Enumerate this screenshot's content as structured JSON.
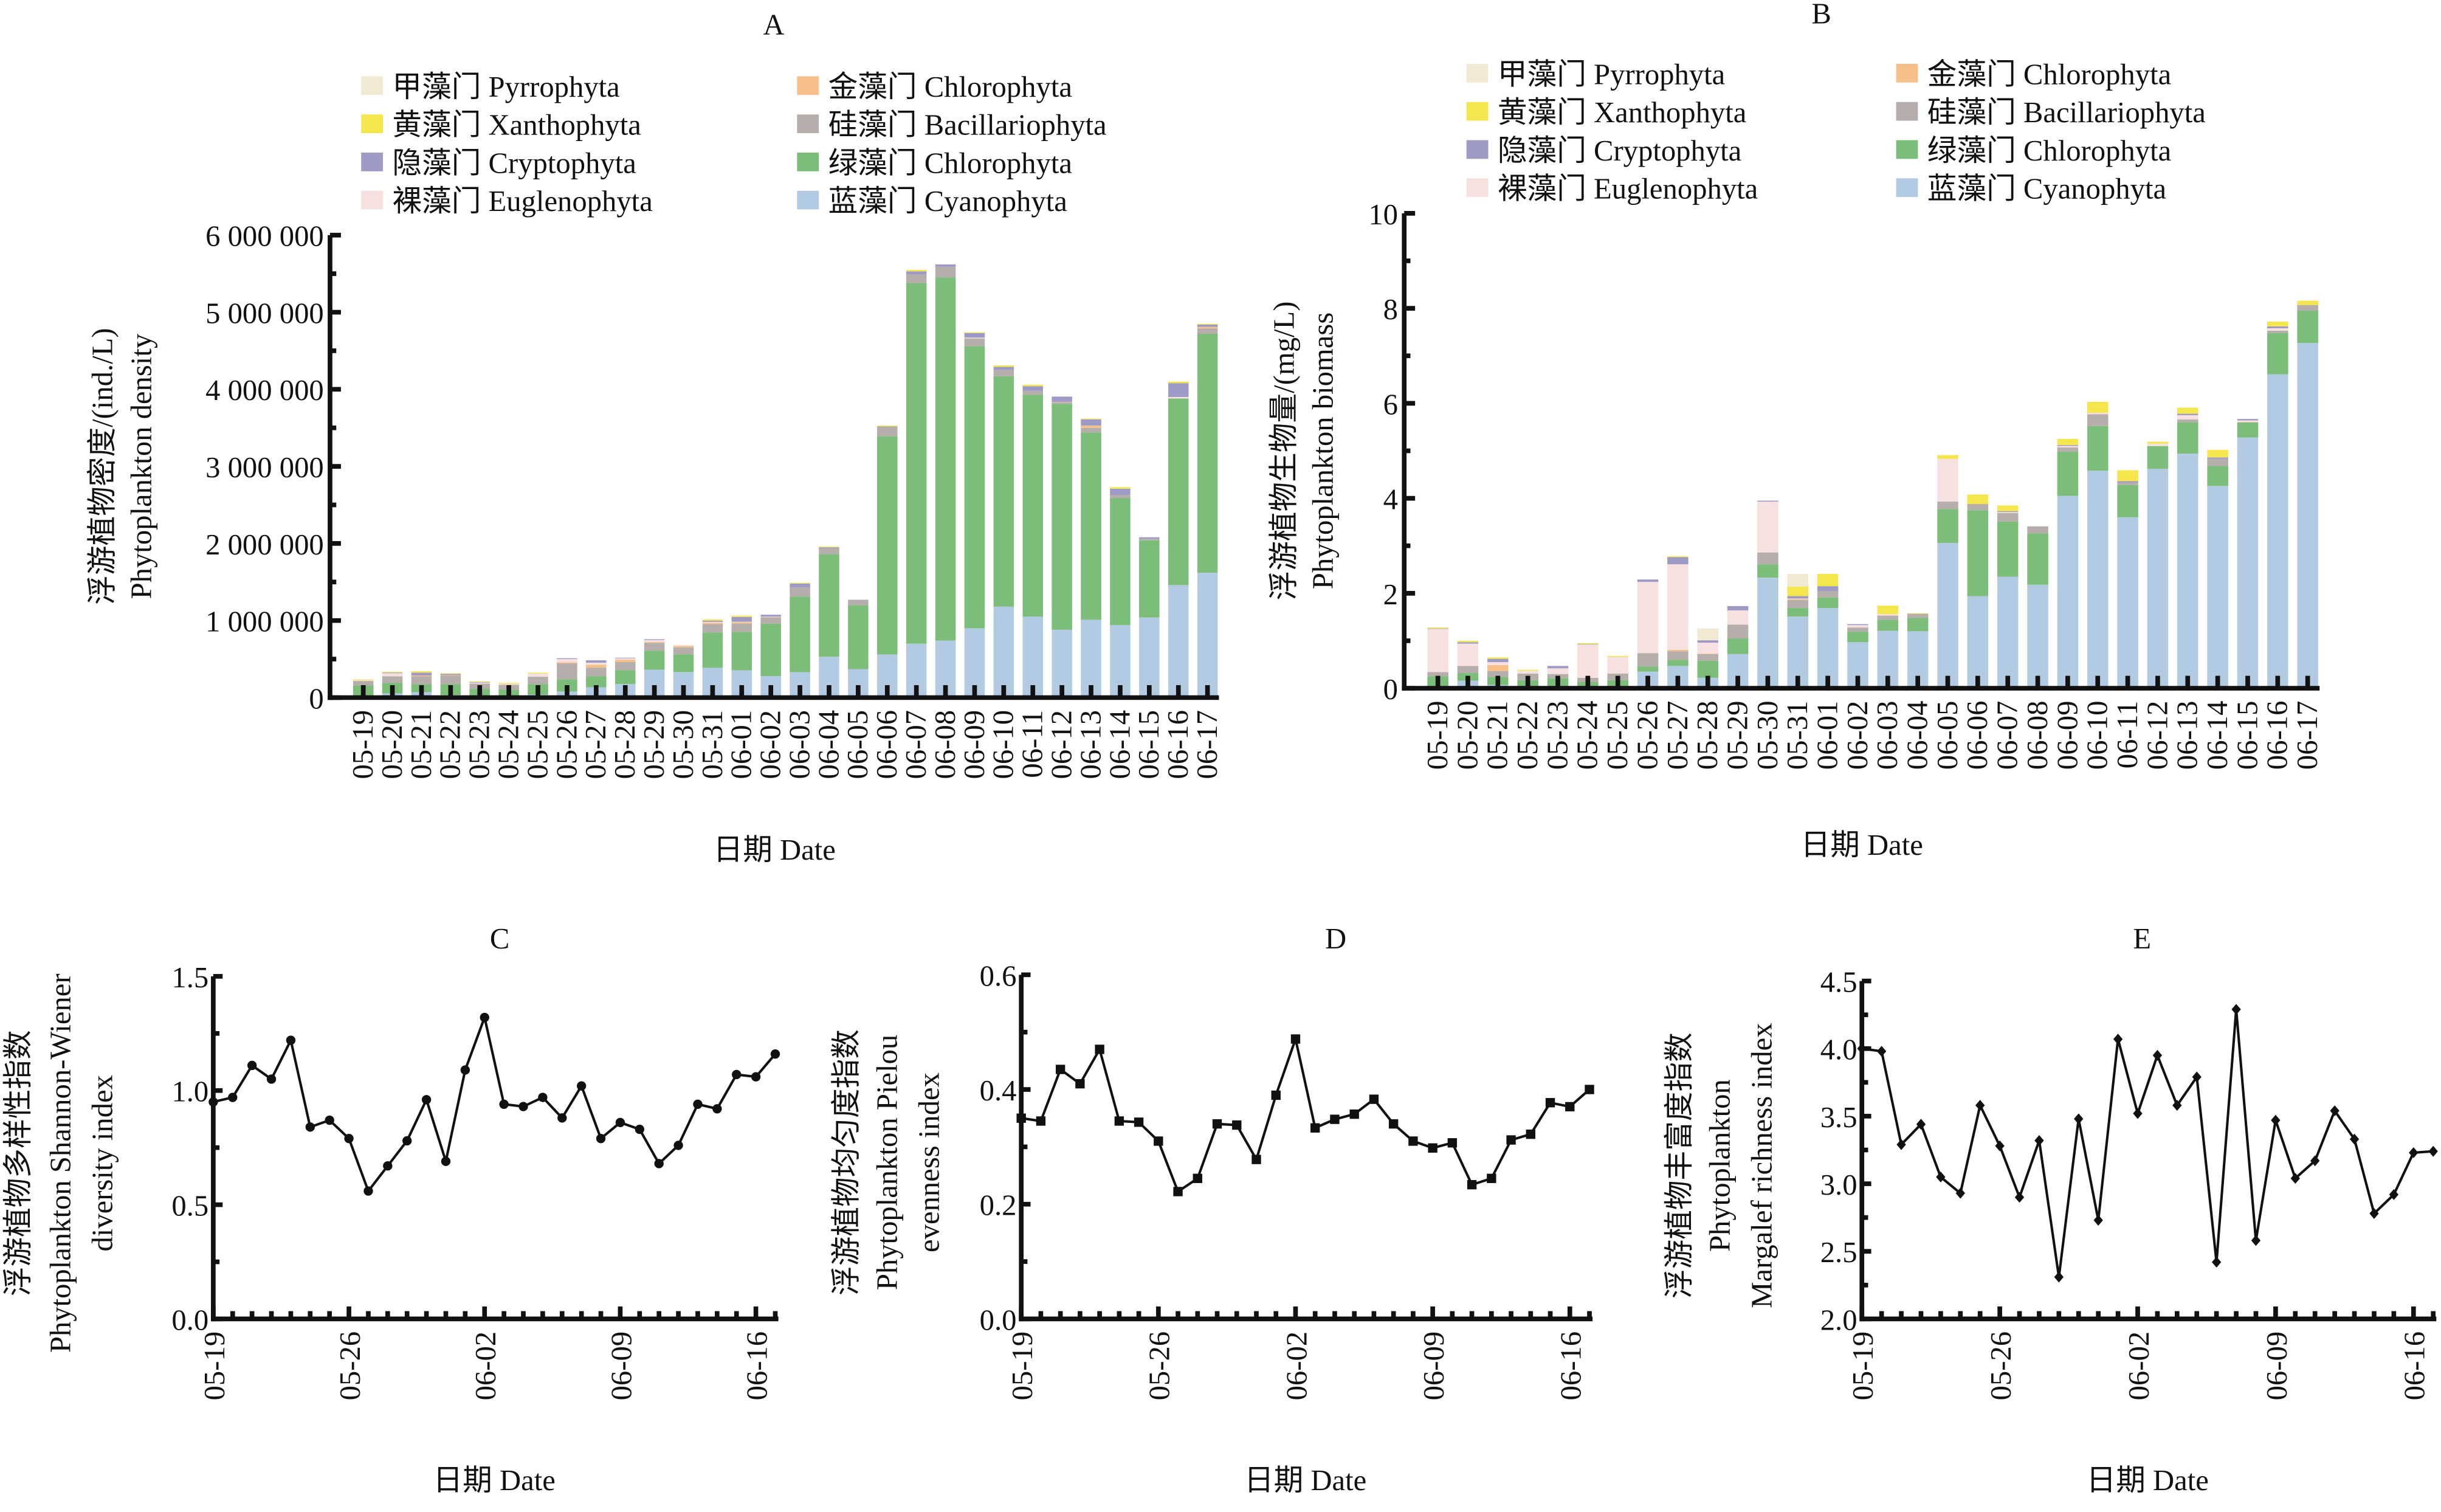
{
  "figure": {
    "categories_note": "dates are month-day",
    "dates": [
      "05-19",
      "05-20",
      "05-21",
      "05-22",
      "05-23",
      "05-24",
      "05-25",
      "05-26",
      "05-27",
      "05-28",
      "05-29",
      "05-30",
      "05-31",
      "06-01",
      "06-02",
      "06-03",
      "06-04",
      "06-05",
      "06-06",
      "06-07",
      "06-08",
      "06-09",
      "06-10",
      "06-11",
      "06-12",
      "06-13",
      "06-14",
      "06-15",
      "06-16",
      "06-17"
    ]
  },
  "legend": [
    {
      "key": "pyrrophyta",
      "label": "甲藻门 Pyrrophyta",
      "color": "#F1E9D2"
    },
    {
      "key": "xanthophyta",
      "label": "黄藻门 Xanthophyta",
      "color": "#F5E64E"
    },
    {
      "key": "cryptophyta",
      "label": "隐藻门 Cryptophyta",
      "color": "#9D9BC6"
    },
    {
      "key": "euglenophyta",
      "label": "裸藻门 Euglenophyta",
      "color": "#F7E1E0"
    },
    {
      "key": "chrysophyta",
      "label": "金藻门 Chlorophyta",
      "color": "#F6C08A"
    },
    {
      "key": "bacillariophyta",
      "label": "硅藻门 Bacillariophyta",
      "color": "#B6AEAB"
    },
    {
      "key": "chlorophyta",
      "label": "绿藻门 Chlorophyta",
      "color": "#7CBD7A"
    },
    {
      "key": "cyanophyta",
      "label": "蓝藻门 Cyanophyta",
      "color": "#B3CBE2"
    }
  ],
  "chart_data": [
    {
      "id": "A",
      "type": "bar",
      "stacked": true,
      "title": "A",
      "xlabel": "日期 Date",
      "ylabel_cn": "浮游植物密度/(ind./L)",
      "ylabel_en": "Phytoplankton density",
      "ylim": [
        0,
        6000000
      ],
      "yticks": [
        0,
        1000000,
        2000000,
        3000000,
        4000000,
        5000000,
        6000000
      ],
      "ytick_labels": [
        "0",
        "1 000 000",
        "2 000 000",
        "3 000 000",
        "4 000 000",
        "5 000 000",
        "6 000 000"
      ],
      "legend_position": "top",
      "categories": [
        "05-19",
        "05-20",
        "05-21",
        "05-22",
        "05-23",
        "05-24",
        "05-25",
        "05-26",
        "05-27",
        "05-28",
        "05-29",
        "05-30",
        "05-31",
        "06-01",
        "06-02",
        "06-03",
        "06-04",
        "06-05",
        "06-06",
        "06-07",
        "06-08",
        "06-09",
        "06-10",
        "06-11",
        "06-12",
        "06-13",
        "06-14",
        "06-15",
        "06-16",
        "06-17"
      ],
      "series": [
        {
          "name": "蓝藻门 Cyanophyta",
          "key": "cyanophyta",
          "values": [
            5000,
            55000,
            71000,
            34000,
            5000,
            5000,
            39000,
            79000,
            134000,
            176000,
            363000,
            332000,
            387000,
            355000,
            280000,
            330000,
            530000,
            370000,
            560000,
            700000,
            740000,
            900000,
            1180000,
            1050000,
            880000,
            1010000,
            940000,
            1040000,
            1460000,
            1620000
          ]
        },
        {
          "name": "绿藻门 Chlorophyta",
          "key": "chlorophyta",
          "values": [
            153000,
            137000,
            105000,
            142000,
            108000,
            98000,
            137000,
            158000,
            142000,
            179000,
            245000,
            229000,
            458000,
            498000,
            680000,
            980000,
            1330000,
            830000,
            2830000,
            4680000,
            4710000,
            3660000,
            2990000,
            2880000,
            2930000,
            2430000,
            1650000,
            1000000,
            2420000,
            3100000
          ]
        },
        {
          "name": "硅藻门 Bacillariophyta",
          "key": "bacillariophyta",
          "values": [
            58000,
            84000,
            100000,
            108000,
            69000,
            63000,
            95000,
            208000,
            113000,
            106000,
            103000,
            92000,
            110000,
            108000,
            80000,
            120000,
            80000,
            70000,
            130000,
            110000,
            140000,
            100000,
            80000,
            50000,
            20000,
            60000,
            40000,
            20000,
            0,
            70000
          ]
        },
        {
          "name": "金藻门 Chlorophyta",
          "key": "chrysophyta",
          "values": [
            0,
            0,
            11000,
            8000,
            0,
            0,
            0,
            13000,
            37000,
            31000,
            10000,
            18000,
            16000,
            18000,
            5000,
            0,
            0,
            0,
            0,
            0,
            0,
            0,
            0,
            0,
            5000,
            30000,
            0,
            0,
            0,
            20000
          ]
        },
        {
          "name": "裸藻门 Euglenophyta",
          "key": "euglenophyta",
          "values": [
            10000,
            40000,
            0,
            0,
            13000,
            13000,
            42000,
            42000,
            27000,
            19000,
            26000,
            13000,
            11000,
            5000,
            5000,
            0,
            0,
            0,
            0,
            0,
            0,
            10000,
            0,
            0,
            0,
            0,
            0,
            0,
            20000,
            0
          ]
        },
        {
          "name": "隐藻门 Cryptophyta",
          "key": "cryptophyta",
          "values": [
            0,
            8000,
            37000,
            16000,
            8000,
            0,
            0,
            11000,
            31000,
            7000,
            11000,
            0,
            15000,
            63000,
            25000,
            50000,
            10000,
            0,
            0,
            40000,
            30000,
            60000,
            40000,
            60000,
            70000,
            80000,
            80000,
            20000,
            180000,
            30000
          ]
        },
        {
          "name": "黄藻门 Xanthophyta",
          "key": "xanthophyta",
          "values": [
            8000,
            10000,
            18000,
            8000,
            8000,
            11000,
            11000,
            0,
            0,
            0,
            0,
            0,
            16000,
            16000,
            0,
            10000,
            10000,
            0,
            10000,
            20000,
            0,
            10000,
            20000,
            20000,
            0,
            10000,
            20000,
            0,
            20000,
            10000
          ]
        },
        {
          "name": "甲藻门 Pyrrophyta",
          "key": "pyrrophyta",
          "values": [
            6000,
            0,
            0,
            0,
            0,
            0,
            0,
            0,
            0,
            0,
            0,
            0,
            0,
            0,
            0,
            0,
            0,
            0,
            0,
            0,
            0,
            0,
            0,
            0,
            0,
            0,
            0,
            0,
            0,
            0
          ]
        }
      ]
    },
    {
      "id": "B",
      "type": "bar",
      "stacked": true,
      "title": "B",
      "xlabel": "日期 Date",
      "ylabel_cn": "浮游植物生物量/(mg/L)",
      "ylabel_en": "Phytoplankton biomass",
      "ylim": [
        0,
        10
      ],
      "yticks": [
        0,
        2,
        4,
        6,
        8,
        10
      ],
      "ytick_labels": [
        "0",
        "2",
        "4",
        "6",
        "8",
        "10"
      ],
      "legend_position": "top",
      "categories": [
        "05-19",
        "05-20",
        "05-21",
        "05-22",
        "05-23",
        "05-24",
        "05-25",
        "05-26",
        "05-27",
        "05-28",
        "05-29",
        "05-30",
        "05-31",
        "06-01",
        "06-02",
        "06-03",
        "06-04",
        "06-05",
        "06-06",
        "06-07",
        "06-08",
        "06-09",
        "06-10",
        "06-11",
        "06-12",
        "06-13",
        "06-14",
        "06-15",
        "06-16",
        "06-17"
      ],
      "series": [
        {
          "name": "蓝藻门 Cyanophyta",
          "key": "cyanophyta",
          "values": [
            0.04,
            0.16,
            0.07,
            0.03,
            0.04,
            0.02,
            0.04,
            0.35,
            0.47,
            0.22,
            0.72,
            2.33,
            1.51,
            1.69,
            0.97,
            1.21,
            1.2,
            3.06,
            1.94,
            2.35,
            2.18,
            4.05,
            4.58,
            3.6,
            4.62,
            4.94,
            4.26,
            5.28,
            6.61,
            7.27
          ]
        },
        {
          "name": "绿藻门 Chlorophyta",
          "key": "chlorophyta",
          "values": [
            0.21,
            0.16,
            0.17,
            0.14,
            0.17,
            0.11,
            0.13,
            0.11,
            0.13,
            0.36,
            0.33,
            0.28,
            0.18,
            0.22,
            0.22,
            0.23,
            0.28,
            0.71,
            1.81,
            1.16,
            1.08,
            0.93,
            0.94,
            0.68,
            0.48,
            0.66,
            0.42,
            0.32,
            0.87,
            0.68
          ]
        },
        {
          "name": "硅藻门 Bacillariophyta",
          "key": "bacillariophyta",
          "values": [
            0.09,
            0.15,
            0.12,
            0.14,
            0.09,
            0.09,
            0.14,
            0.28,
            0.18,
            0.14,
            0.29,
            0.25,
            0.17,
            0.14,
            0.09,
            0.09,
            0.09,
            0.16,
            0.13,
            0.18,
            0.15,
            0.09,
            0.25,
            0.05,
            0,
            0.06,
            0.15,
            0,
            0.05,
            0.12
          ]
        },
        {
          "name": "金藻门 Chlorophyta",
          "key": "chrysophyta",
          "values": [
            0,
            0,
            0.13,
            0,
            0,
            0,
            0,
            0,
            0.03,
            0.01,
            0,
            0,
            0.02,
            0,
            0,
            0,
            0,
            0,
            0,
            0,
            0,
            0,
            0,
            0,
            0,
            0,
            0,
            0,
            0,
            0
          ]
        },
        {
          "name": "裸藻门 Euglenophyta",
          "key": "euglenophyta",
          "values": [
            0.91,
            0.47,
            0.06,
            0.06,
            0.12,
            0.7,
            0.35,
            1.5,
            1.8,
            0.23,
            0.3,
            1.07,
            0.01,
            0,
            0.05,
            0.03,
            0,
            0.9,
            0,
            0.02,
            0,
            0.03,
            0.03,
            0,
            0.05,
            0.09,
            0,
            0.04,
            0.05,
            0
          ]
        },
        {
          "name": "隐藻门 Cryptophyta",
          "key": "cryptophyta",
          "values": [
            0.01,
            0.03,
            0.07,
            0,
            0.05,
            0.01,
            0,
            0.05,
            0.15,
            0.05,
            0.09,
            0.02,
            0.05,
            0.1,
            0.02,
            0,
            0,
            0,
            0,
            0.02,
            0,
            0.02,
            0,
            0.03,
            0,
            0.03,
            0.03,
            0.03,
            0.04,
            0
          ]
        },
        {
          "name": "黄藻门 Xanthophyta",
          "key": "xanthophyta",
          "values": [
            0.02,
            0.03,
            0.03,
            0.02,
            0,
            0.02,
            0.02,
            0,
            0.02,
            0,
            0,
            0,
            0.2,
            0.26,
            0,
            0.18,
            0.01,
            0.08,
            0.2,
            0.12,
            0,
            0.13,
            0.23,
            0.23,
            0.04,
            0.13,
            0.16,
            0,
            0.1,
            0.09
          ]
        },
        {
          "name": "甲藻门 Pyrrophyta",
          "key": "pyrrophyta",
          "values": [
            0,
            0,
            0,
            0,
            0,
            0,
            0,
            0,
            0,
            0.25,
            0,
            0,
            0.27,
            0,
            0,
            0,
            0,
            0,
            0,
            0,
            0,
            0,
            0,
            0,
            0,
            0,
            0,
            0,
            0,
            0
          ]
        }
      ]
    },
    {
      "id": "C",
      "type": "line",
      "marker": "circle",
      "title": "C",
      "xlabel": "日期 Date",
      "ylabel_cn": "浮游植物多样性指数",
      "ylabel_en": "Phytoplankton Shannon-Wiener diversity index",
      "ylabel_en_lines": [
        "Phytoplankton Shannon-Wiener",
        "diversity index"
      ],
      "ylim": [
        0,
        1.5
      ],
      "yticks": [
        0,
        0.5,
        1.0,
        1.5
      ],
      "ytick_labels": [
        "0.0",
        "0.5",
        "1.0",
        "1.5"
      ],
      "xtick_labels": [
        "05-19",
        "05-26",
        "06-02",
        "06-09",
        "06-16"
      ],
      "x": [
        "05-19",
        "05-20",
        "05-21",
        "05-22",
        "05-23",
        "05-24",
        "05-25",
        "05-26",
        "05-27",
        "05-28",
        "05-29",
        "05-30",
        "05-31",
        "06-01",
        "06-02",
        "06-03",
        "06-04",
        "06-05",
        "06-06",
        "06-07",
        "06-08",
        "06-09",
        "06-10",
        "06-11",
        "06-12",
        "06-13",
        "06-14",
        "06-15",
        "06-16",
        "06-17"
      ],
      "values": [
        0.95,
        0.97,
        1.11,
        1.05,
        1.22,
        0.84,
        0.87,
        0.79,
        0.56,
        0.67,
        0.78,
        0.96,
        0.69,
        1.09,
        1.32,
        0.94,
        0.93,
        0.97,
        0.88,
        1.02,
        0.79,
        0.86,
        0.83,
        0.68,
        0.76,
        0.94,
        0.92,
        1.07,
        1.06,
        1.16
      ]
    },
    {
      "id": "D",
      "type": "line",
      "marker": "square",
      "title": "D",
      "xlabel": "日期 Date",
      "ylabel_cn": "浮游植物均匀度指数",
      "ylabel_en": "Phytoplankton Pielou evenness index",
      "ylabel_en_lines": [
        "Phytoplankton Pielou",
        "evenness index"
      ],
      "ylim": [
        0,
        0.6
      ],
      "yticks": [
        0,
        0.2,
        0.4,
        0.6
      ],
      "ytick_labels": [
        "0.0",
        "0.2",
        "0.4",
        "0.6"
      ],
      "xtick_labels": [
        "05-19",
        "05-26",
        "06-02",
        "06-09",
        "06-16"
      ],
      "x": [
        "05-19",
        "05-20",
        "05-21",
        "05-22",
        "05-23",
        "05-24",
        "05-25",
        "05-26",
        "05-27",
        "05-28",
        "05-29",
        "05-30",
        "05-31",
        "06-01",
        "06-02",
        "06-03",
        "06-04",
        "06-05",
        "06-06",
        "06-07",
        "06-08",
        "06-09",
        "06-10",
        "06-11",
        "06-12",
        "06-13",
        "06-14",
        "06-15",
        "06-16",
        "06-17"
      ],
      "values": [
        0.35,
        0.345,
        0.435,
        0.41,
        0.47,
        0.345,
        0.343,
        0.31,
        0.222,
        0.245,
        0.34,
        0.338,
        0.278,
        0.39,
        0.488,
        0.333,
        0.348,
        0.357,
        0.383,
        0.34,
        0.31,
        0.298,
        0.307,
        0.234,
        0.245,
        0.312,
        0.322,
        0.377,
        0.37,
        0.4
      ]
    },
    {
      "id": "E",
      "type": "line",
      "marker": "diamond",
      "title": "E",
      "xlabel": "日期 Date",
      "ylabel_cn": "浮游植物丰富度指数",
      "ylabel_en": "Phytoplankton Margalef richness index",
      "ylabel_en_lines": [
        "Phytoplankton",
        "Margalef richness index"
      ],
      "ylim": [
        2.0,
        4.5
      ],
      "yticks": [
        2.0,
        2.5,
        3.0,
        3.5,
        4.0,
        4.5
      ],
      "ytick_labels": [
        "2.0",
        "2.5",
        "3.0",
        "3.5",
        "4.0",
        "4.5"
      ],
      "xtick_labels": [
        "05-19",
        "05-26",
        "06-02",
        "06-09",
        "06-16"
      ],
      "x": [
        "05-19",
        "05-20",
        "05-21",
        "05-22",
        "05-23",
        "05-24",
        "05-25",
        "05-26",
        "05-27",
        "05-28",
        "05-29",
        "05-30",
        "05-31",
        "06-01",
        "06-02",
        "06-03",
        "06-04",
        "06-05",
        "06-06",
        "06-07",
        "06-08",
        "06-09",
        "06-10",
        "06-11",
        "06-12",
        "06-13",
        "06-14",
        "06-15",
        "06-16",
        "06-17"
      ],
      "values": [
        4.0,
        3.98,
        3.29,
        3.44,
        3.05,
        2.93,
        3.58,
        3.28,
        2.9,
        3.32,
        2.31,
        3.48,
        2.73,
        4.07,
        3.52,
        3.95,
        3.58,
        3.79,
        2.42,
        4.29,
        2.58,
        3.47,
        3.04,
        3.17,
        3.54,
        3.33,
        2.78,
        2.92,
        3.23,
        3.24
      ]
    }
  ]
}
